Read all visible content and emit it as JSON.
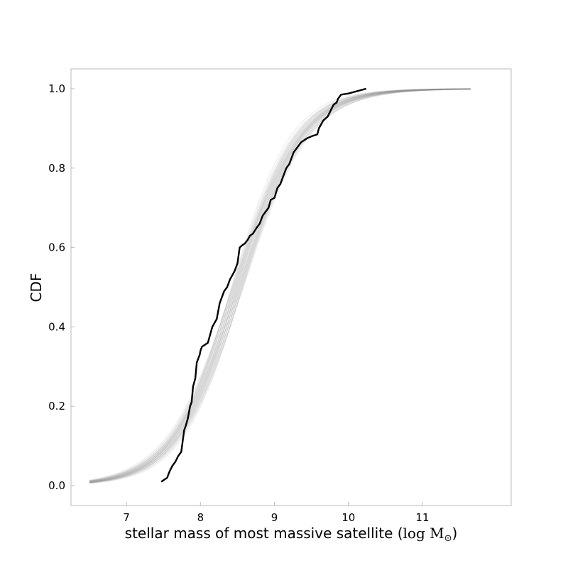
{
  "chart_data": {
    "type": "line",
    "xlabel_text": "stellar mass of most massive satellite (",
    "xlabel_unit": "log M",
    "xlabel_unit_sub": "⊙",
    "xlabel_close": ")",
    "ylabel": "CDF",
    "xlim": [
      6.25,
      12.2
    ],
    "ylim": [
      -0.05,
      1.05
    ],
    "xticks": [
      7,
      8,
      9,
      10,
      11
    ],
    "yticks": [
      0.0,
      0.2,
      0.4,
      0.6,
      0.8,
      1.0
    ],
    "ytick_labels": [
      "0.0",
      "0.2",
      "0.4",
      "0.6",
      "0.8",
      "1.0"
    ],
    "grid": false,
    "colors": {
      "model": "#888888",
      "observed": "#000000",
      "frame": "#bbbbbb"
    },
    "model_band": {
      "count": 30,
      "x_min": 6.5,
      "x_max": 11.65,
      "center": [
        8.42,
        8.58
      ],
      "scale": [
        0.4,
        0.46
      ]
    },
    "series": [
      {
        "x": [
          7.47,
          7.55,
          7.58,
          7.62,
          7.66,
          7.7,
          7.74,
          7.78,
          7.8,
          7.83,
          7.86,
          7.88,
          7.9,
          7.93,
          7.95,
          7.97,
          7.99,
          8.0,
          8.02,
          8.06,
          8.1,
          8.16,
          8.22,
          8.24,
          8.26,
          8.3,
          8.32,
          8.36,
          8.4,
          8.46,
          8.5,
          8.53,
          8.56,
          8.6,
          8.64,
          8.67,
          8.71,
          8.76,
          8.8,
          8.84,
          8.88,
          8.92,
          8.95,
          9.0,
          9.04,
          9.08,
          9.12,
          9.16,
          9.2,
          9.26,
          9.3,
          9.36,
          9.44,
          9.5,
          9.58,
          9.6,
          9.66,
          9.72,
          9.76,
          9.8,
          9.84,
          9.86,
          9.9,
          10.0,
          10.08,
          10.16,
          10.24
        ],
        "y": [
          0.01,
          0.02,
          0.035,
          0.05,
          0.06,
          0.075,
          0.085,
          0.14,
          0.15,
          0.17,
          0.2,
          0.21,
          0.25,
          0.27,
          0.31,
          0.32,
          0.33,
          0.34,
          0.35,
          0.355,
          0.36,
          0.4,
          0.42,
          0.44,
          0.46,
          0.48,
          0.49,
          0.5,
          0.52,
          0.54,
          0.56,
          0.6,
          0.605,
          0.61,
          0.62,
          0.63,
          0.635,
          0.65,
          0.66,
          0.68,
          0.69,
          0.7,
          0.72,
          0.725,
          0.75,
          0.76,
          0.78,
          0.8,
          0.81,
          0.84,
          0.85,
          0.865,
          0.875,
          0.88,
          0.885,
          0.9,
          0.92,
          0.93,
          0.945,
          0.96,
          0.965,
          0.975,
          0.985,
          0.988,
          0.992,
          0.996,
          1.0
        ]
      }
    ]
  }
}
